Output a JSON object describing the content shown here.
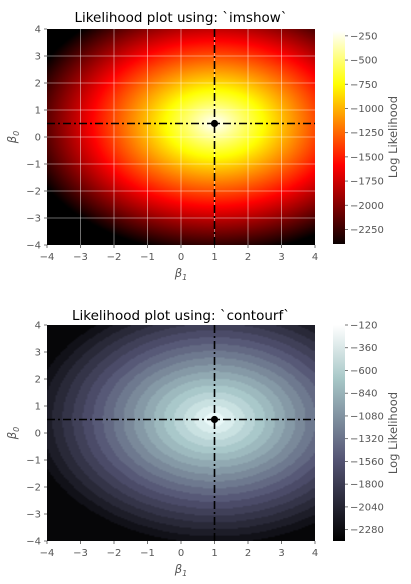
{
  "chart_data": [
    {
      "type": "heatmap",
      "title": "Likelihood plot using: `imshow`",
      "xlabel": "β",
      "xlabel_sub": "1",
      "ylabel": "β",
      "ylabel_sub": "0",
      "xlim": [
        -4,
        4
      ],
      "ylim": [
        -4,
        4
      ],
      "xticks": [
        -4,
        -3,
        -2,
        -1,
        0,
        1,
        2,
        3,
        4
      ],
      "yticks": [
        -4,
        -3,
        -2,
        -1,
        0,
        1,
        2,
        3,
        4
      ],
      "colormap": "hot",
      "grid": true,
      "colorbar": {
        "label": "Log Likelihood",
        "range": [
          -2400,
          -200
        ],
        "ticks": [
          -250,
          -500,
          -750,
          -1000,
          -1250,
          -1500,
          -1750,
          -2000,
          -2250
        ],
        "ticklabels": [
          "−250",
          "−500",
          "−750",
          "−1000",
          "−1250",
          "−1500",
          "−1750",
          "−2000",
          "−2250"
        ]
      },
      "marker": {
        "x": 1,
        "y": 0.5
      },
      "reference_lines": {
        "vertical_x": 1,
        "horizontal_y": 0.5,
        "style": "dash-dot",
        "color": "#000000"
      }
    },
    {
      "type": "heatmap",
      "title": "Likelihood plot using: `contourf`",
      "xlabel": "β",
      "xlabel_sub": "1",
      "ylabel": "β",
      "ylabel_sub": "0",
      "xlim": [
        -4,
        4
      ],
      "ylim": [
        -4,
        4
      ],
      "xticks": [
        -4,
        -3,
        -2,
        -1,
        0,
        1,
        2,
        3,
        4
      ],
      "yticks": [
        -4,
        -3,
        -2,
        -1,
        0,
        1,
        2,
        3,
        4
      ],
      "colormap": "bone",
      "filled_contours": true,
      "colorbar": {
        "label": "Log Likelihood",
        "range": [
          -2400,
          -120
        ],
        "ticks": [
          -120,
          -360,
          -600,
          -840,
          -1080,
          -1320,
          -1560,
          -1800,
          -2040,
          -2280
        ],
        "ticklabels": [
          "−120",
          "−360",
          "−600",
          "−840",
          "−1080",
          "−1320",
          "−1560",
          "−1800",
          "−2040",
          "−2280"
        ]
      },
      "marker": {
        "x": 1,
        "y": 0.5
      },
      "reference_lines": {
        "vertical_x": 1,
        "horizontal_y": 0.5,
        "style": "dash-dot",
        "color": "#000000"
      }
    }
  ]
}
